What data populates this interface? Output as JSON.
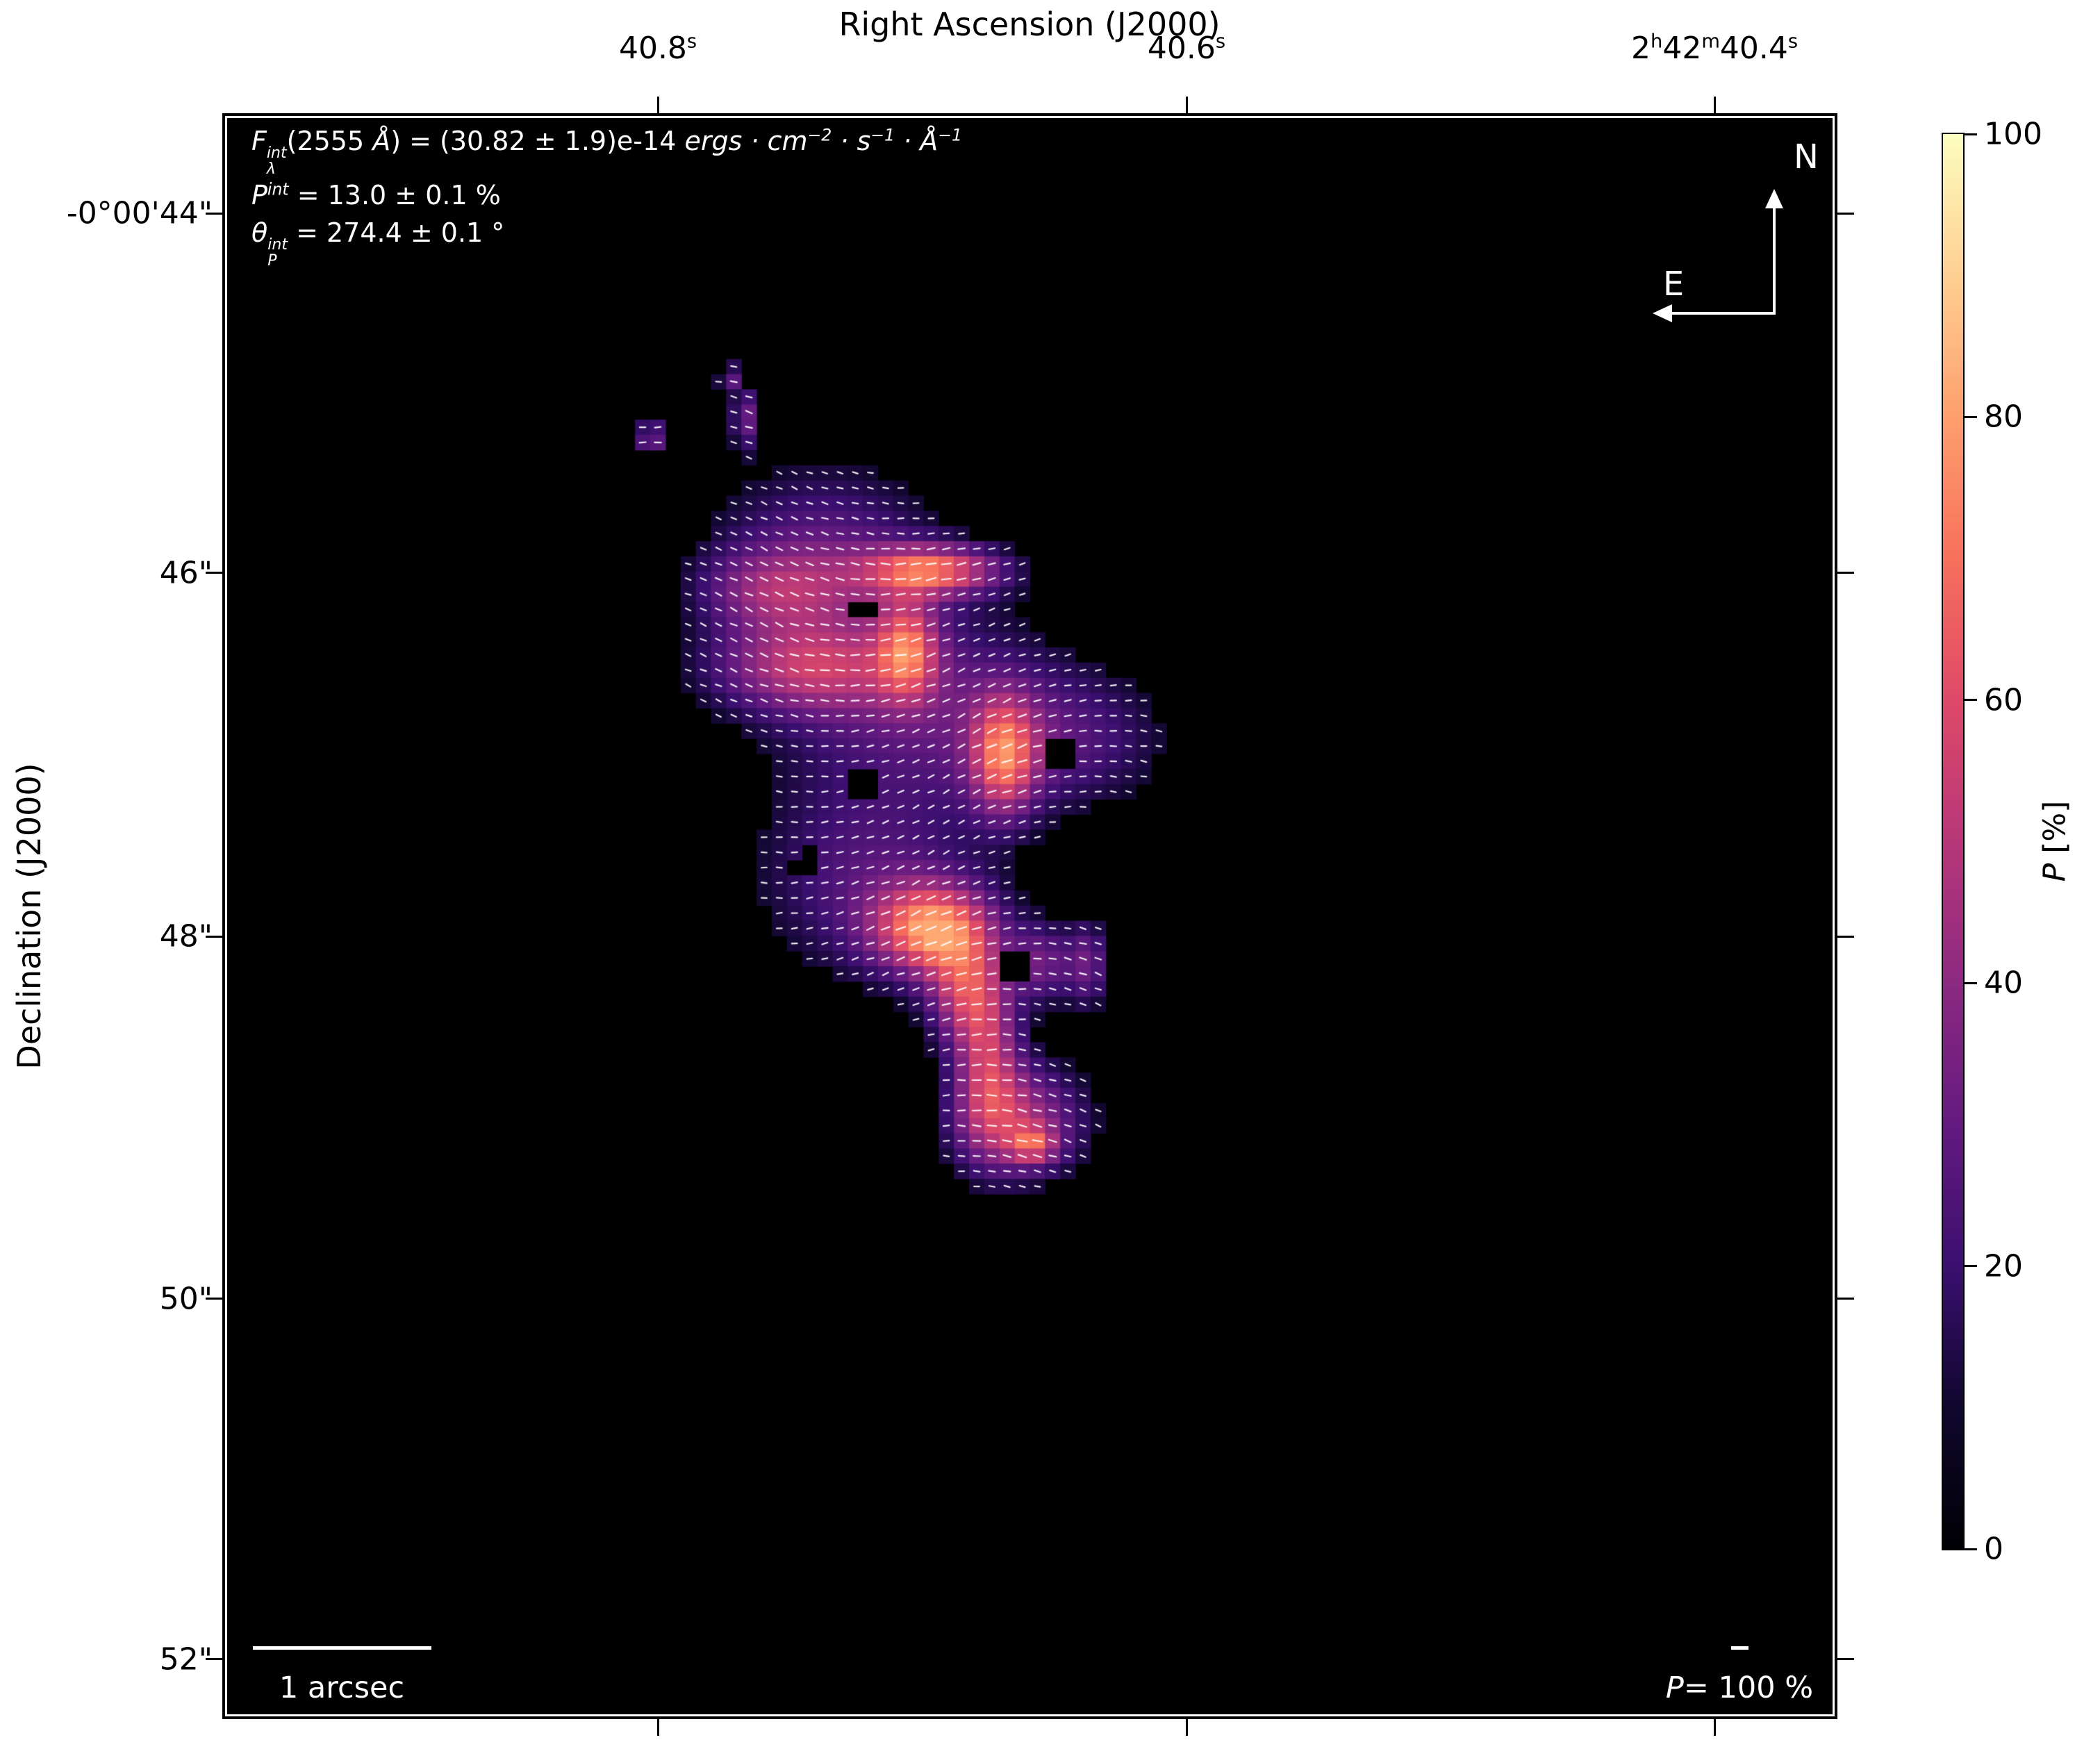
{
  "annotation": {
    "line1_html": "<i>F</i><span class='stk'><span><i>int</i></span><span><i>λ</i></span></span>(2555 <i>Å</i>) = (30.82 ± 1.9)e-14 <i>ergs · cm<sup>−2</sup> · s<sup>−1</sup> · Å<sup>−1</sup></i>",
    "line2_html": "<i>P<sup>int</sup></i> = 13.0 ± 0.1 %",
    "line3_html": "<i>θ</i><span class='stk'><span><i>int</i></span><span><i>P</i></span></span> = 274.4 ± 0.1 °"
  },
  "axes": {
    "top": {
      "title": "Right Ascension (J2000)",
      "ticks": [
        {
          "html": "40.8<sup>s</sup>",
          "fx": 0.2697
        },
        {
          "html": "40.6<sup>s</sup>",
          "fx": 0.597
        },
        {
          "html": "2<sup>h</sup>42<sup>m</sup>40.4<sup>s</sup>",
          "fx": 0.9239
        }
      ]
    },
    "left": {
      "title": "Declination (J2000)",
      "ticks": [
        {
          "label": "-0°00'44\"",
          "fy": 0.0623
        },
        {
          "label": "46\"",
          "fy": 0.2863
        },
        {
          "label": "48\"",
          "fy": 0.5126
        },
        {
          "label": "50\"",
          "fy": 0.7383
        },
        {
          "label": "52\"",
          "fy": 0.9628
        }
      ]
    }
  },
  "compass": {
    "north_label": "N",
    "east_label": "E"
  },
  "scalebar": {
    "label": "1 arcsec"
  },
  "pscale": {
    "label_html": "<i>P</i>= 100 %"
  },
  "colorbar": {
    "label_html": "<i>P</i> [%]",
    "tick_values": [
      100,
      80,
      60,
      40,
      20,
      0
    ],
    "min": 0,
    "max": 100
  },
  "chart_data": {
    "type": "heatmap",
    "subtype": "polarization-vector-map",
    "title": "",
    "xlabel": "Right Ascension (J2000)",
    "ylabel": "Declination (J2000)",
    "x_ticks_ra": [
      "40.8s",
      "40.6s",
      "2h42m40.4s"
    ],
    "y_ticks_dec": [
      "-0°00'44\"",
      "46\"",
      "48\"",
      "50\"",
      "52\""
    ],
    "colorbar_label": "P [%]",
    "colorbar_range": [
      0,
      100
    ],
    "integrated_values": {
      "flux_2555A_e14": 30.82,
      "flux_err_e14": 1.9,
      "P_percent": 13.0,
      "P_err_percent": 0.1,
      "theta_deg": 274.4,
      "theta_err_deg": 0.1
    },
    "colormap": "magma",
    "colormap_stops": [
      [
        0.0,
        "#000004"
      ],
      [
        0.1,
        "#10072e"
      ],
      [
        0.2,
        "#3b0f70"
      ],
      [
        0.3,
        "#641a80"
      ],
      [
        0.4,
        "#8c2981"
      ],
      [
        0.5,
        "#b73779"
      ],
      [
        0.6,
        "#de4968"
      ],
      [
        0.7,
        "#f7705c"
      ],
      [
        0.8,
        "#fe9f6d"
      ],
      [
        0.9,
        "#fecf92"
      ],
      [
        1.0,
        "#fcfdbf"
      ]
    ],
    "grid_cols": 106,
    "threshold": 0.105,
    "vmax": 0.82,
    "background": "#000000",
    "blobs": [
      {
        "x": 0.372,
        "y": 0.272,
        "sx": 0.05,
        "sy": 0.04,
        "a": 0.26
      },
      {
        "x": 0.44,
        "y": 0.284,
        "sx": 0.03,
        "sy": 0.011,
        "a": 0.58
      },
      {
        "x": 0.34,
        "y": 0.296,
        "sx": 0.032,
        "sy": 0.018,
        "a": 0.28
      },
      {
        "x": 0.36,
        "y": 0.345,
        "sx": 0.042,
        "sy": 0.02,
        "a": 0.38
      },
      {
        "x": 0.424,
        "y": 0.333,
        "sx": 0.013,
        "sy": 0.022,
        "a": 0.45
      },
      {
        "x": 0.425,
        "y": 0.365,
        "sx": 0.065,
        "sy": 0.048,
        "a": 0.24
      },
      {
        "x": 0.484,
        "y": 0.401,
        "sx": 0.014,
        "sy": 0.026,
        "a": 0.5
      },
      {
        "x": 0.52,
        "y": 0.39,
        "sx": 0.048,
        "sy": 0.032,
        "a": 0.22
      },
      {
        "x": 0.398,
        "y": 0.478,
        "sx": 0.05,
        "sy": 0.045,
        "a": 0.24
      },
      {
        "x": 0.44,
        "y": 0.508,
        "sx": 0.026,
        "sy": 0.02,
        "a": 0.68
      },
      {
        "x": 0.458,
        "y": 0.548,
        "sx": 0.016,
        "sy": 0.024,
        "a": 0.4
      },
      {
        "x": 0.474,
        "y": 0.585,
        "sx": 0.014,
        "sy": 0.038,
        "a": 0.42
      },
      {
        "x": 0.492,
        "y": 0.628,
        "sx": 0.03,
        "sy": 0.026,
        "a": 0.45
      },
      {
        "x": 0.502,
        "y": 0.643,
        "sx": 0.01,
        "sy": 0.008,
        "a": 0.35
      },
      {
        "x": 0.507,
        "y": 0.53,
        "sx": 0.013,
        "sy": 0.018,
        "a": 0.3
      },
      {
        "x": 0.536,
        "y": 0.53,
        "sx": 0.01,
        "sy": 0.02,
        "a": 0.3
      },
      {
        "x": 0.313,
        "y": 0.163,
        "sx": 0.005,
        "sy": 0.006,
        "a": 0.3
      },
      {
        "x": 0.323,
        "y": 0.188,
        "sx": 0.006,
        "sy": 0.014,
        "a": 0.32
      },
      {
        "x": 0.265,
        "y": 0.201,
        "sx": 0.008,
        "sy": 0.008,
        "a": 0.32
      }
    ],
    "holes": [
      {
        "x": 0.518,
        "y": 0.398,
        "r": 0.013
      },
      {
        "x": 0.396,
        "y": 0.416,
        "r": 0.008
      },
      {
        "x": 0.36,
        "y": 0.466,
        "r": 0.008
      },
      {
        "x": 0.487,
        "y": 0.532,
        "r": 0.011
      },
      {
        "x": 0.396,
        "y": 0.306,
        "r": 0.007
      }
    ],
    "vectors": {
      "color": "rgba(255,255,255,0.92)",
      "width": 2.2,
      "base_deg": 0,
      "amp1_deg": 16,
      "f1x": 2.3,
      "f1y": 1.7,
      "amp2_deg": 10,
      "f2x": 3.9,
      "jitter_deg": 7,
      "len_base": 0.3,
      "len_scale": 0.48
    }
  }
}
